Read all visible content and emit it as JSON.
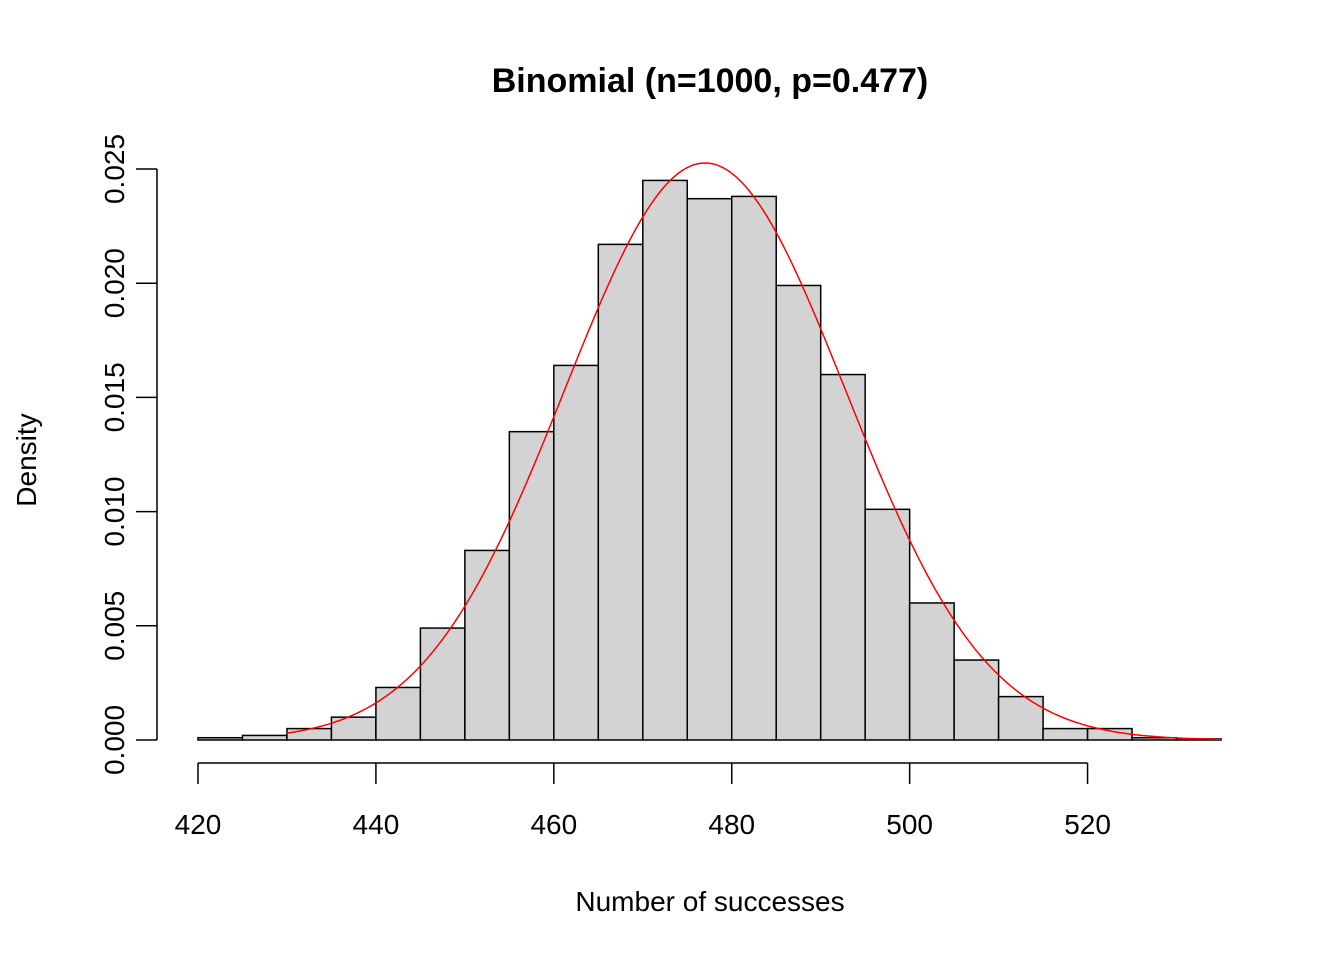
{
  "chart_data": {
    "type": "bar",
    "title": "Binomial (n=1000, p=0.477)",
    "xlabel": "Number of successes",
    "ylabel": "Density",
    "bin_edges": [
      420,
      425,
      430,
      435,
      440,
      445,
      450,
      455,
      460,
      465,
      470,
      475,
      480,
      485,
      490,
      495,
      500,
      505,
      510,
      515,
      520,
      525,
      530,
      535
    ],
    "values": [
      0.0001,
      0.0002,
      0.0005,
      0.001,
      0.0023,
      0.0049,
      0.0083,
      0.0135,
      0.0164,
      0.0217,
      0.0245,
      0.0237,
      0.0238,
      0.0199,
      0.016,
      0.0101,
      0.006,
      0.0035,
      0.0019,
      0.0005,
      0.0005,
      0.0001,
      5e-05
    ],
    "xlim": [
      420,
      535
    ],
    "ylim": [
      0,
      0.025
    ],
    "x_ticks": [
      "420",
      "440",
      "460",
      "480",
      "500",
      "520"
    ],
    "y_ticks": [
      "0.000",
      "0.005",
      "0.010",
      "0.015",
      "0.020",
      "0.025"
    ],
    "curve": {
      "type": "normal-density",
      "mean": 477,
      "sd": 15.79,
      "x_range": [
        430,
        535
      ]
    },
    "grid": false,
    "colors": {
      "bar_fill": "#d3d3d3",
      "bar_stroke": "#000000",
      "curve": "#ff0000"
    }
  }
}
